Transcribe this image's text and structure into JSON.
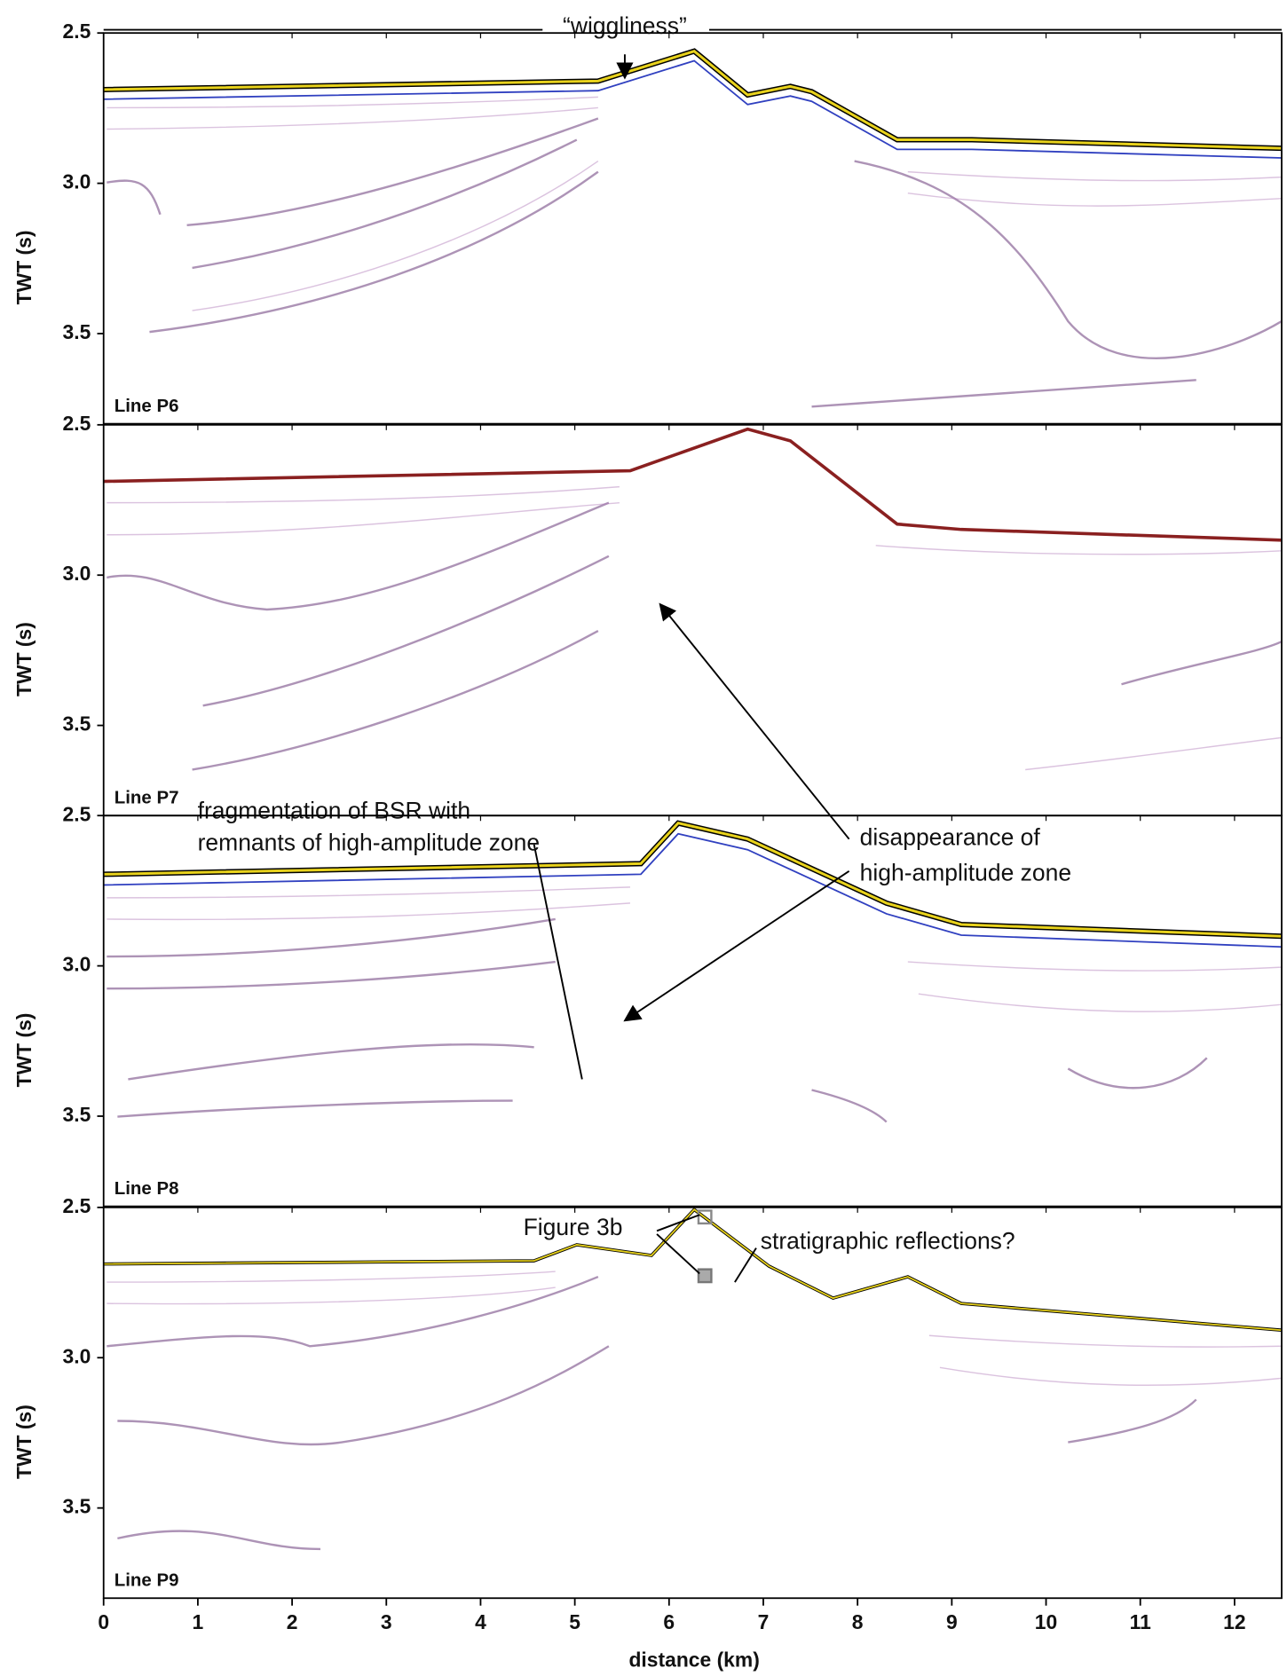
{
  "panels": [
    {
      "label": "Line P6",
      "ylabel": "TWT (s)",
      "ylim": [
        2.5,
        3.8
      ],
      "yticks": [
        2.5,
        {
          "value": 3,
          "label": "3.0"
        },
        3.5
      ]
    },
    {
      "label": "Line P7",
      "ylabel": "TWT (s)",
      "ylim": [
        2.5,
        3.8
      ],
      "yticks": [
        2.5,
        {
          "value": 3,
          "label": "3.0"
        },
        3.5
      ]
    },
    {
      "label": "Line P8",
      "ylabel": "TWT (s)",
      "ylim": [
        2.5,
        3.8
      ],
      "yticks": [
        2.5,
        {
          "value": 3,
          "label": "3.0"
        },
        3.5
      ]
    },
    {
      "label": "Line P9",
      "ylabel": "TWT (s)",
      "ylim": [
        2.5,
        3.8
      ],
      "yticks": [
        2.5,
        {
          "value": 3,
          "label": "3.0"
        },
        3.5
      ]
    }
  ],
  "xaxis": {
    "label": "distance (km)",
    "xlim": [
      0,
      12.5
    ],
    "ticks": [
      0,
      1,
      2,
      3,
      4,
      5,
      6,
      7,
      8,
      9,
      10,
      11,
      12
    ]
  },
  "annotations": [
    "“wiggliness”",
    "fragmentation of BSR with",
    "remnants of high-amplitude zone",
    "disappearance of",
    "high-amplitude zone",
    "Figure 3b",
    "stratigraphic reflections?"
  ]
}
